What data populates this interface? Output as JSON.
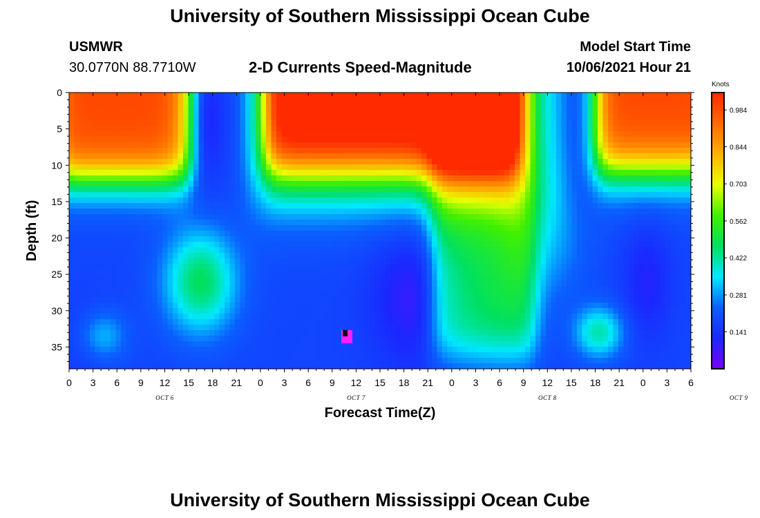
{
  "header": {
    "title": "University of Southern Mississippi Ocean Cube",
    "station": "USMWR",
    "coords": "30.0770N  88.7710W",
    "subtitle": "2-D Currents Speed-Magnitude",
    "model_label": "Model Start Time",
    "model_time": "10/06/2021 Hour 21"
  },
  "footer": {
    "title": "University of Southern Mississippi Ocean Cube"
  },
  "colors": {
    "ramp": [
      "#7a00ff",
      "#1a28ff",
      "#0a60ff",
      "#00e8ff",
      "#00e060",
      "#40f000",
      "#e8ff00",
      "#ffb000",
      "#ff6a00",
      "#ff2a00"
    ]
  },
  "chart_data": {
    "type": "heatmap",
    "title": "2-D Currents Speed-Magnitude",
    "xlabel": "Forecast Time(Z)",
    "ylabel": "Depth (ft)",
    "x_tick_labels": [
      "0",
      "3",
      "6",
      "9",
      "12",
      "15",
      "18",
      "21",
      "0",
      "3",
      "6",
      "9",
      "12",
      "15",
      "18",
      "21",
      "0",
      "3",
      "6",
      "9",
      "12",
      "15",
      "18",
      "21",
      "0",
      "3",
      "6"
    ],
    "x_day_labels": [
      "OCT 6",
      "OCT 7",
      "OCT 8",
      "OCT 9"
    ],
    "y_ticks": [
      0,
      5,
      10,
      15,
      20,
      25,
      30,
      35
    ],
    "ylim": [
      38,
      0
    ],
    "xlim_hours": [
      0,
      78
    ],
    "colorbar": {
      "unit": "Knots",
      "labels": [
        "0.984",
        "0.844",
        "0.703",
        "0.562",
        "0.422",
        "0.281",
        "0.141"
      ],
      "range": [
        0.0,
        1.05
      ]
    }
  }
}
